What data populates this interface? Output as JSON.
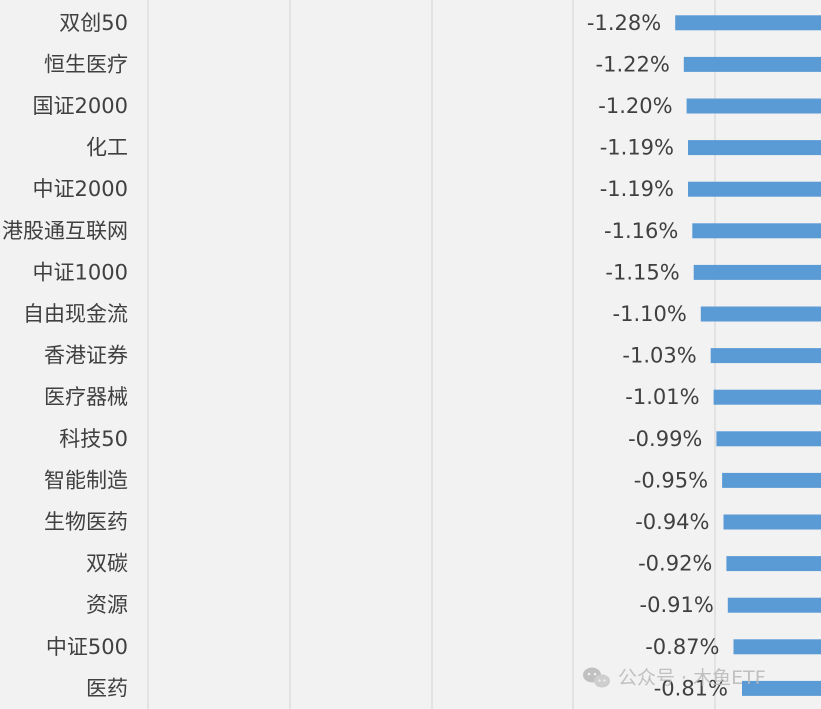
{
  "chart_data": {
    "type": "bar",
    "orientation": "horizontal",
    "categories": [
      "双创50",
      "恒生医疗",
      "国证2000",
      "化工",
      "中证2000",
      "港股通互联网",
      "中证1000",
      "自由现金流",
      "香港证券",
      "医疗器械",
      "科技50",
      "智能制造",
      "生物医药",
      "双碳",
      "资源",
      "中证500",
      "医药"
    ],
    "values": [
      -1.28,
      -1.22,
      -1.2,
      -1.19,
      -1.19,
      -1.16,
      -1.15,
      -1.1,
      -1.03,
      -1.01,
      -0.99,
      -0.95,
      -0.94,
      -0.92,
      -0.91,
      -0.87,
      -0.81
    ],
    "value_labels": [
      "-1.28%",
      "-1.22%",
      "-1.20%",
      "-1.19%",
      "-1.19%",
      "-1.16%",
      "-1.15%",
      "-1.10%",
      "-1.03%",
      "-1.01%",
      "-0.99%",
      "-0.95%",
      "-0.94%",
      "-0.92%",
      "-0.91%",
      "-0.87%",
      "-0.81%"
    ],
    "title": "",
    "xlabel": "",
    "ylabel": "",
    "grid": true,
    "colors": {
      "bar": "#5b9bd5",
      "background": "#f2f2f2",
      "grid": "#d9d9d9",
      "text": "#404040"
    }
  },
  "watermark": {
    "text": "公众号 · 木鱼ETF",
    "icon": "wechat-icon"
  }
}
